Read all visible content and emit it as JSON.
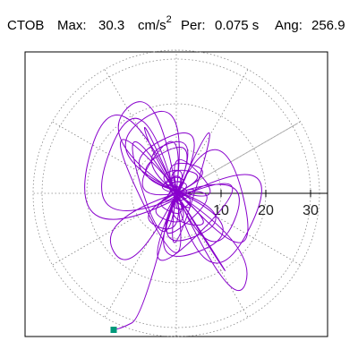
{
  "header": {
    "station": "CTOB",
    "max_label": "Max:",
    "max_value": "30.3",
    "max_unit": "cm/s",
    "max_unit_exp": "2",
    "per_label": "Per:",
    "per_value": "0.075 s",
    "ang_label": "Ang:",
    "ang_value": "256.9"
  },
  "chart_data": {
    "type": "polar-trajectory",
    "r_ticks": [
      10,
      20,
      30
    ],
    "r_max": 32,
    "grid": true,
    "direction_line_deg": 30,
    "trace_color": "#8800cc",
    "end_marker_color": "#00997a",
    "trajectory_xy": [
      [
        0,
        0
      ],
      [
        2,
        3
      ],
      [
        -3,
        2
      ],
      [
        3,
        -4
      ],
      [
        -2,
        -3
      ],
      [
        4,
        1
      ],
      [
        -4,
        2
      ],
      [
        2,
        5
      ],
      [
        -1,
        -5
      ],
      [
        5,
        -1
      ],
      [
        -5,
        1
      ],
      [
        1,
        4
      ],
      [
        -3,
        -2
      ],
      [
        3,
        3
      ],
      [
        -2,
        4
      ],
      [
        0,
        -3
      ],
      [
        6,
        2
      ],
      [
        -6,
        -2
      ],
      [
        3,
        -6
      ],
      [
        -3,
        6
      ],
      [
        8,
        4
      ],
      [
        -8,
        -4
      ],
      [
        4,
        -8
      ],
      [
        -4,
        8
      ],
      [
        10,
        5
      ],
      [
        -10,
        -5
      ],
      [
        2,
        -10
      ],
      [
        -2,
        12
      ],
      [
        12,
        -3
      ],
      [
        -12,
        4
      ],
      [
        6,
        14
      ],
      [
        -6,
        -14
      ],
      [
        15,
        -5
      ],
      [
        -15,
        6
      ],
      [
        9,
        18
      ],
      [
        -8,
        -18
      ],
      [
        18,
        -8
      ],
      [
        -18,
        9
      ],
      [
        3,
        24
      ],
      [
        -3,
        -23
      ],
      [
        12,
        26
      ],
      [
        -11,
        -25
      ],
      [
        22,
        8
      ],
      [
        -22,
        -10
      ],
      [
        -8,
        28
      ],
      [
        7,
        -27
      ],
      [
        26,
        12
      ],
      [
        -25,
        -14
      ],
      [
        -14,
        30
      ],
      [
        13,
        -28
      ],
      [
        18,
        -12
      ],
      [
        -18,
        12
      ],
      [
        -4,
        26
      ],
      [
        4,
        -26
      ],
      [
        -20,
        24
      ],
      [
        20,
        -22
      ],
      [
        10,
        20
      ],
      [
        -10,
        -20
      ],
      [
        -18,
        -6
      ],
      [
        18,
        6
      ],
      [
        8,
        -18
      ],
      [
        -8,
        18
      ],
      [
        -6,
        10
      ],
      [
        6,
        -10
      ],
      [
        14,
        -22
      ],
      [
        -14,
        22
      ],
      [
        -2,
        -18
      ],
      [
        2,
        18
      ],
      [
        -12,
        -2
      ],
      [
        12,
        2
      ],
      [
        -6,
        -14
      ],
      [
        6,
        14
      ],
      [
        -10,
        8
      ],
      [
        10,
        -8
      ],
      [
        -3,
        -6
      ],
      [
        3,
        6
      ],
      [
        -5,
        4
      ],
      [
        5,
        -4
      ],
      [
        -1,
        -2
      ],
      [
        1,
        3
      ],
      [
        -4,
        -3
      ],
      [
        4,
        2
      ],
      [
        -2,
        3
      ],
      [
        2,
        -2
      ],
      [
        0,
        1
      ],
      [
        -8,
        -28
      ],
      [
        -12,
        -30
      ],
      [
        -14,
        -30.5
      ]
    ],
    "end_point_xy": [
      -14,
      -30.5
    ]
  }
}
